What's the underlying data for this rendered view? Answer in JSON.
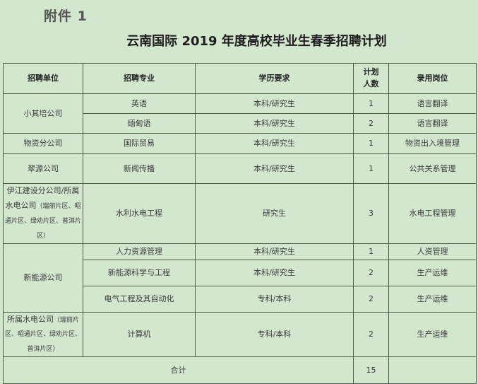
{
  "attachment_label": "附件 1",
  "title": "云南国际 2019 年度高校毕业生春季招聘计划",
  "table": {
    "headers": [
      "招聘单位",
      "招聘专业",
      "学历要求",
      "计划人数",
      "录用岗位"
    ],
    "header_count_lines": [
      "计划",
      "人数"
    ],
    "units": {
      "u1": "小其培公司",
      "u2": "物资分公司",
      "u3": "翠源公司",
      "u4_main": "伊江建设分公司/所属水电公司",
      "u4_note": "（瑞丽片区、昭通片区、绿劝片区、普洱片区）",
      "u5": "新能源公司",
      "u6_main": "所属水电公司",
      "u6_note": "（瑞丽片区、昭通片区、绿劝片区、普洱片区）"
    },
    "rows": [
      {
        "major": "英语",
        "edu": "本科/研究生",
        "count": "1",
        "post": "语言翻译"
      },
      {
        "major": "缅甸语",
        "edu": "本科/研究生",
        "count": "2",
        "post": "语言翻译"
      },
      {
        "major": "国际贸易",
        "edu": "本科/研究生",
        "count": "1",
        "post": "物资出入境管理"
      },
      {
        "major": "新闻传播",
        "edu": "本科/研究生",
        "count": "1",
        "post": "公共关系管理"
      },
      {
        "major": "水利水电工程",
        "edu": "研究生",
        "count": "3",
        "post": "水电工程管理"
      },
      {
        "major": "人力资源管理",
        "edu": "本科/研究生",
        "count": "1",
        "post": "人资管理"
      },
      {
        "major": "新能源科学与工程",
        "edu": "本科/研究生",
        "count": "2",
        "post": "生产运维"
      },
      {
        "major": "电气工程及其自动化",
        "edu": "专科/本科",
        "count": "2",
        "post": "生产运维"
      },
      {
        "major": "计算机",
        "edu": "专科/本科",
        "count": "2",
        "post": "生产运维"
      }
    ],
    "total_label": "合计",
    "total_count": "15"
  }
}
